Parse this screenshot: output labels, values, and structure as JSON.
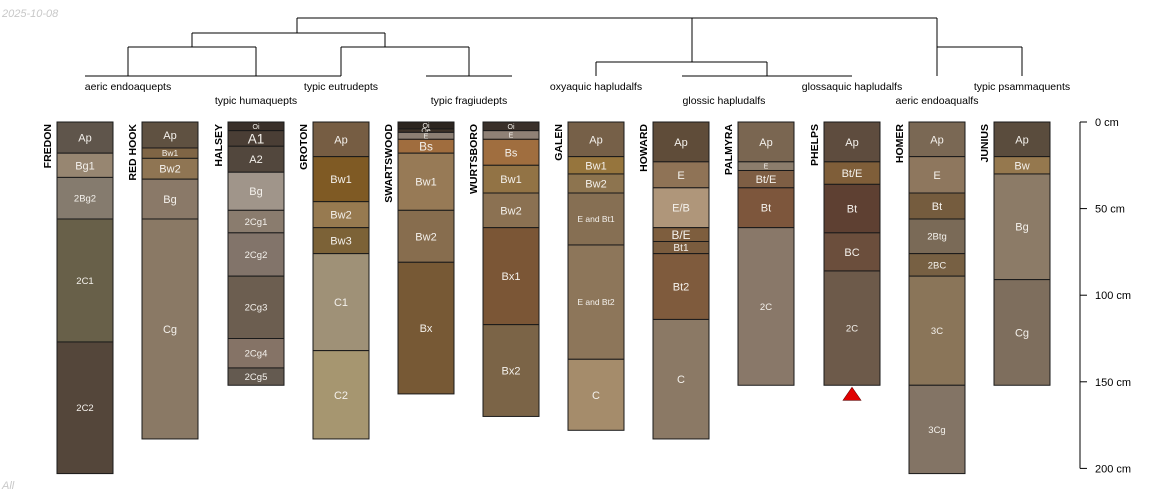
{
  "header": {
    "date": "2025-10-08"
  },
  "footer": {
    "note": "All"
  },
  "depth_axis": {
    "unit": "cm",
    "max_depth": 200,
    "ticks": [
      {
        "depth": 0,
        "label": "0 cm"
      },
      {
        "depth": 50,
        "label": "50 cm"
      },
      {
        "depth": 100,
        "label": "100 cm"
      },
      {
        "depth": 150,
        "label": "150 cm"
      },
      {
        "depth": 200,
        "label": "200 cm"
      }
    ]
  },
  "dendrogram_labels": [
    "aeric endoaquepts",
    "typic humaquepts",
    "typic eutrudepts",
    "typic fragiudepts",
    "oxyaquic hapludalfs",
    "glossic hapludalfs",
    "glossaquic hapludalfs",
    "aeric endoaqualfs",
    "typic psammaquents"
  ],
  "profiles": [
    {
      "name": "FREDON",
      "horizons": [
        {
          "name": "Ap",
          "top": 0,
          "bottom": 18,
          "color": "#5f554b"
        },
        {
          "name": "Bg1",
          "top": 18,
          "bottom": 32,
          "color": "#978671"
        },
        {
          "name": "2Bg2",
          "top": 32,
          "bottom": 56,
          "color": "#857b6e"
        },
        {
          "name": "2C1",
          "top": 56,
          "bottom": 127,
          "color": "#686049"
        },
        {
          "name": "2C2",
          "top": 127,
          "bottom": 203,
          "color": "#54463a"
        }
      ]
    },
    {
      "name": "RED HOOK",
      "horizons": [
        {
          "name": "Ap",
          "top": 0,
          "bottom": 15,
          "color": "#5f5141"
        },
        {
          "name": "Bw1",
          "top": 15,
          "bottom": 21,
          "color": "#7f6545"
        },
        {
          "name": "Bw2",
          "top": 21,
          "bottom": 33,
          "color": "#8f7553"
        },
        {
          "name": "Bg",
          "top": 33,
          "bottom": 56,
          "color": "#8a7968"
        },
        {
          "name": "Cg",
          "top": 56,
          "bottom": 183,
          "color": "#8a7965"
        }
      ]
    },
    {
      "name": "HALSEY",
      "horizons": [
        {
          "name": "Oi",
          "top": 0,
          "bottom": 5,
          "color": "#3a302a"
        },
        {
          "name": "A1",
          "top": 5,
          "bottom": 14,
          "color": "#4a3e35"
        },
        {
          "name": "A2",
          "top": 14,
          "bottom": 29,
          "color": "#52473d"
        },
        {
          "name": "Bg",
          "top": 29,
          "bottom": 51,
          "color": "#a0958a"
        },
        {
          "name": "2Cg1",
          "top": 51,
          "bottom": 64,
          "color": "#8a7c6e"
        },
        {
          "name": "2Cg2",
          "top": 64,
          "bottom": 89,
          "color": "#82746a"
        },
        {
          "name": "2Cg3",
          "top": 89,
          "bottom": 125,
          "color": "#6c5e50"
        },
        {
          "name": "2Cg4",
          "top": 125,
          "bottom": 142,
          "color": "#857366"
        },
        {
          "name": "2Cg5",
          "top": 142,
          "bottom": 152,
          "color": "#645a50"
        }
      ]
    },
    {
      "name": "GROTON",
      "horizons": [
        {
          "name": "Ap",
          "top": 0,
          "bottom": 20,
          "color": "#765d43"
        },
        {
          "name": "Bw1",
          "top": 20,
          "bottom": 46,
          "color": "#7f5a24"
        },
        {
          "name": "Bw2",
          "top": 46,
          "bottom": 61,
          "color": "#977a50"
        },
        {
          "name": "Bw3",
          "top": 61,
          "bottom": 76,
          "color": "#7c6237"
        },
        {
          "name": "C1",
          "top": 76,
          "bottom": 132,
          "color": "#9f9177"
        },
        {
          "name": "C2",
          "top": 132,
          "bottom": 183,
          "color": "#a69670"
        }
      ]
    },
    {
      "name": "SWARTSWOOD",
      "horizons": [
        {
          "name": "Oi",
          "top": 0,
          "bottom": 4,
          "color": "#2d2620"
        },
        {
          "name": "Oe",
          "top": 4,
          "bottom": 6,
          "color": "#3d3228"
        },
        {
          "name": "E",
          "top": 6,
          "bottom": 10,
          "color": "#8c7f73"
        },
        {
          "name": "Bs",
          "top": 10,
          "bottom": 18,
          "color": "#a06d3e"
        },
        {
          "name": "Bw1",
          "top": 18,
          "bottom": 51,
          "color": "#977a56"
        },
        {
          "name": "Bw2",
          "top": 51,
          "bottom": 81,
          "color": "#876d4e"
        },
        {
          "name": "Bx",
          "top": 81,
          "bottom": 157,
          "color": "#775935"
        }
      ]
    },
    {
      "name": "WURTSBORO",
      "horizons": [
        {
          "name": "Oi",
          "top": 0,
          "bottom": 5,
          "color": "#3a302a"
        },
        {
          "name": "E",
          "top": 5,
          "bottom": 10,
          "color": "#8f8176"
        },
        {
          "name": "Bs",
          "top": 10,
          "bottom": 25,
          "color": "#a06e3f"
        },
        {
          "name": "Bw1",
          "top": 25,
          "bottom": 41,
          "color": "#927345"
        },
        {
          "name": "Bw2",
          "top": 41,
          "bottom": 61,
          "color": "#8b7152"
        },
        {
          "name": "Bx1",
          "top": 61,
          "bottom": 117,
          "color": "#7b5636"
        },
        {
          "name": "Bx2",
          "top": 117,
          "bottom": 170,
          "color": "#7b6447"
        }
      ]
    },
    {
      "name": "GALEN",
      "horizons": [
        {
          "name": "Ap",
          "top": 0,
          "bottom": 20,
          "color": "#766048"
        },
        {
          "name": "Bw1",
          "top": 20,
          "bottom": 30,
          "color": "#96753d"
        },
        {
          "name": "Bw2",
          "top": 30,
          "bottom": 41,
          "color": "#8d744f"
        },
        {
          "name": "E and Bt1",
          "top": 41,
          "bottom": 71,
          "color": "#866f53"
        },
        {
          "name": "E and Bt2",
          "top": 71,
          "bottom": 137,
          "color": "#8d765a"
        },
        {
          "name": "C",
          "top": 137,
          "bottom": 178,
          "color": "#a58c6b"
        }
      ]
    },
    {
      "name": "HOWARD",
      "horizons": [
        {
          "name": "Ap",
          "top": 0,
          "bottom": 23,
          "color": "#5f4c39"
        },
        {
          "name": "E",
          "top": 23,
          "bottom": 38,
          "color": "#8f7356"
        },
        {
          "name": "E/B",
          "top": 38,
          "bottom": 61,
          "color": "#af967a"
        },
        {
          "name": "B/E",
          "top": 61,
          "bottom": 69,
          "color": "#7e5e3e"
        },
        {
          "name": "Bt1",
          "top": 69,
          "bottom": 76,
          "color": "#7a5c3e"
        },
        {
          "name": "Bt2",
          "top": 76,
          "bottom": 114,
          "color": "#7f5b3d"
        },
        {
          "name": "C",
          "top": 114,
          "bottom": 183,
          "color": "#8b7965"
        }
      ]
    },
    {
      "name": "PALMYRA",
      "horizons": [
        {
          "name": "Ap",
          "top": 0,
          "bottom": 23,
          "color": "#7a6651"
        },
        {
          "name": "E",
          "top": 23,
          "bottom": 28,
          "color": "#8c7d6c"
        },
        {
          "name": "Bt/E",
          "top": 28,
          "bottom": 38,
          "color": "#7e5e44"
        },
        {
          "name": "Bt",
          "top": 38,
          "bottom": 61,
          "color": "#7d563c"
        },
        {
          "name": "2C",
          "top": 61,
          "bottom": 152,
          "color": "#897869"
        }
      ]
    },
    {
      "name": "PHELPS",
      "horizons": [
        {
          "name": "Ap",
          "top": 0,
          "bottom": 23,
          "color": "#5e4c3e"
        },
        {
          "name": "Bt/E",
          "top": 23,
          "bottom": 36,
          "color": "#7f5e39"
        },
        {
          "name": "Bt",
          "top": 36,
          "bottom": 64,
          "color": "#5e4032"
        },
        {
          "name": "BC",
          "top": 64,
          "bottom": 86,
          "color": "#6b4e3c"
        },
        {
          "name": "2C",
          "top": 86,
          "bottom": 152,
          "color": "#6d5a4a"
        }
      ]
    },
    {
      "name": "HOMER",
      "horizons": [
        {
          "name": "Ap",
          "top": 0,
          "bottom": 20,
          "color": "#7a6854"
        },
        {
          "name": "E",
          "top": 20,
          "bottom": 41,
          "color": "#8e775e"
        },
        {
          "name": "Bt",
          "top": 41,
          "bottom": 56,
          "color": "#755c3e"
        },
        {
          "name": "2Btg",
          "top": 56,
          "bottom": 76,
          "color": "#7a6a57"
        },
        {
          "name": "2BC",
          "top": 76,
          "bottom": 89,
          "color": "#776043"
        },
        {
          "name": "3C",
          "top": 89,
          "bottom": 152,
          "color": "#8a7559"
        },
        {
          "name": "3Cg",
          "top": 152,
          "bottom": 203,
          "color": "#837465"
        }
      ]
    },
    {
      "name": "JUNIUS",
      "horizons": [
        {
          "name": "Ap",
          "top": 0,
          "bottom": 20,
          "color": "#5a4c3d"
        },
        {
          "name": "Bw",
          "top": 20,
          "bottom": 30,
          "color": "#95784e"
        },
        {
          "name": "Bg",
          "top": 30,
          "bottom": 91,
          "color": "#8c7b67"
        },
        {
          "name": "Cg",
          "top": 91,
          "bottom": 152,
          "color": "#7e6e5d"
        }
      ]
    }
  ],
  "marker": {
    "profile": "PHELPS",
    "color": "#e00000"
  }
}
